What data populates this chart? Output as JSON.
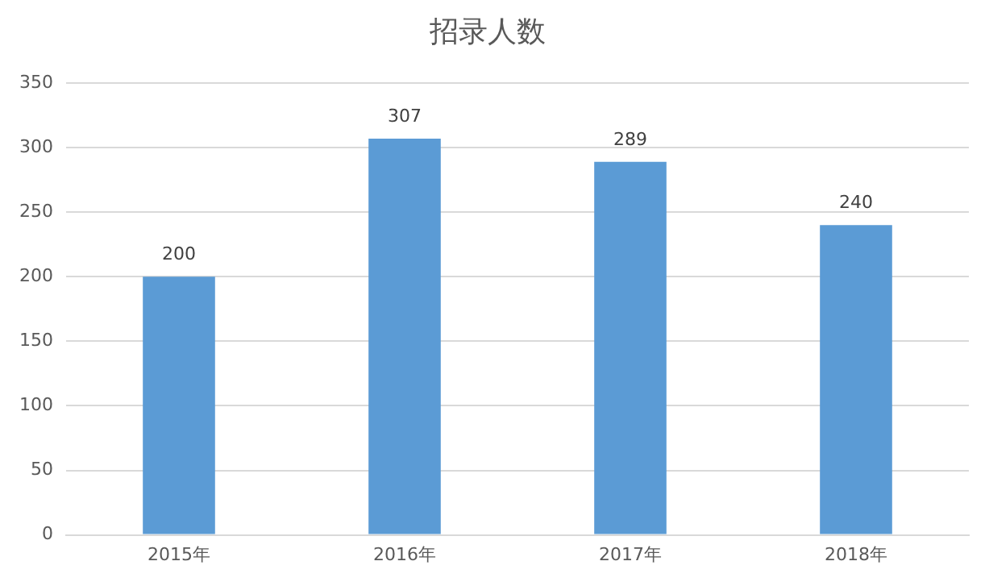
{
  "chart_data": {
    "type": "bar",
    "title": "招录人数",
    "categories": [
      "2015年",
      "2016年",
      "2017年",
      "2018年"
    ],
    "values": [
      200,
      307,
      289,
      240
    ],
    "color": "#5b9bd5",
    "ylim": [
      0,
      350
    ],
    "yticks": [
      0,
      50,
      100,
      150,
      200,
      250,
      300,
      350
    ],
    "grid": "y",
    "data_labels": true,
    "legend": false
  }
}
